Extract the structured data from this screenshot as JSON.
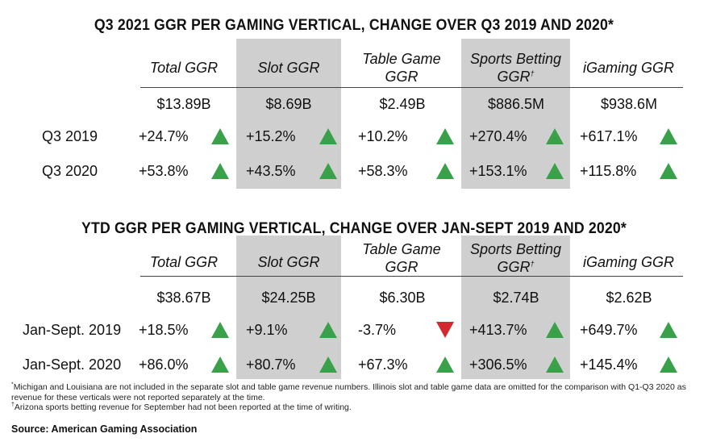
{
  "chart_data": [
    {
      "type": "table",
      "title": "Q3 2021 GGR PER GAMING VERTICAL, CHANGE OVER Q3 2019 AND 2020*",
      "columns": [
        {
          "line1": "Total GGR",
          "line2": "",
          "mark": ""
        },
        {
          "line1": "Slot GGR",
          "line2": "",
          "mark": ""
        },
        {
          "line1": "Table Game",
          "line2": "GGR",
          "mark": ""
        },
        {
          "line1": "Sports Betting",
          "line2": "GGR",
          "mark": "†"
        },
        {
          "line1": "iGaming GGR",
          "line2": "",
          "mark": ""
        }
      ],
      "totals": [
        "$13.89B",
        "$8.69B",
        "$2.49B",
        "$886.5M",
        "$938.6M"
      ],
      "rows": [
        {
          "label": "Q3 2019",
          "values": [
            "+24.7%",
            "+15.2%",
            "+10.2%",
            "+270.4%",
            "+617.1%"
          ],
          "numeric": [
            24.7,
            15.2,
            10.2,
            270.4,
            617.1
          ],
          "directions": [
            "up",
            "up",
            "up",
            "up",
            "up"
          ]
        },
        {
          "label": "Q3 2020",
          "values": [
            "+53.8%",
            "+43.5%",
            "+58.3%",
            "+153.1%",
            "+115.8%"
          ],
          "numeric": [
            53.8,
            43.5,
            58.3,
            153.1,
            115.8
          ],
          "directions": [
            "up",
            "up",
            "up",
            "up",
            "up"
          ]
        }
      ]
    },
    {
      "type": "table",
      "title": "YTD GGR PER GAMING VERTICAL, CHANGE OVER JAN-SEPT 2019 AND 2020*",
      "columns": [
        {
          "line1": "Total GGR",
          "line2": "",
          "mark": ""
        },
        {
          "line1": "Slot GGR",
          "line2": "",
          "mark": ""
        },
        {
          "line1": "Table Game",
          "line2": "GGR",
          "mark": ""
        },
        {
          "line1": "Sports Betting",
          "line2": "GGR",
          "mark": "†"
        },
        {
          "line1": "iGaming GGR",
          "line2": "",
          "mark": ""
        }
      ],
      "totals": [
        "$38.67B",
        "$24.25B",
        "$6.30B",
        "$2.74B",
        "$2.62B"
      ],
      "rows": [
        {
          "label": "Jan-Sept. 2019",
          "values": [
            "+18.5%",
            "+9.1%",
            "-3.7%",
            "+413.7%",
            "+649.7%"
          ],
          "numeric": [
            18.5,
            9.1,
            -3.7,
            413.7,
            649.7
          ],
          "directions": [
            "up",
            "up",
            "down",
            "up",
            "up"
          ]
        },
        {
          "label": "Jan-Sept. 2020",
          "values": [
            "+86.0%",
            "+80.7%",
            "+67.3%",
            "+306.5%",
            "+145.4%"
          ],
          "numeric": [
            86.0,
            80.7,
            67.3,
            306.5,
            145.4
          ],
          "directions": [
            "up",
            "up",
            "up",
            "up",
            "up"
          ]
        }
      ]
    }
  ],
  "colors": {
    "up": "#3aa14a",
    "down": "#d22a2e",
    "highlight": "#cfcfcf"
  },
  "footnotes": {
    "note1_mark": "*",
    "note1": "Michigan and Louisiana are not included in the separate slot and table game revenue numbers. Illinois slot and table game data are omitted for the comparison with Q1-Q3 2020 as revenue for these verticals were not reported separately at the time.",
    "note2_mark": "†",
    "note2": "Arizona sports betting revenue for September had not been reported at the time of writing.",
    "source": "Source: American Gaming Association"
  }
}
